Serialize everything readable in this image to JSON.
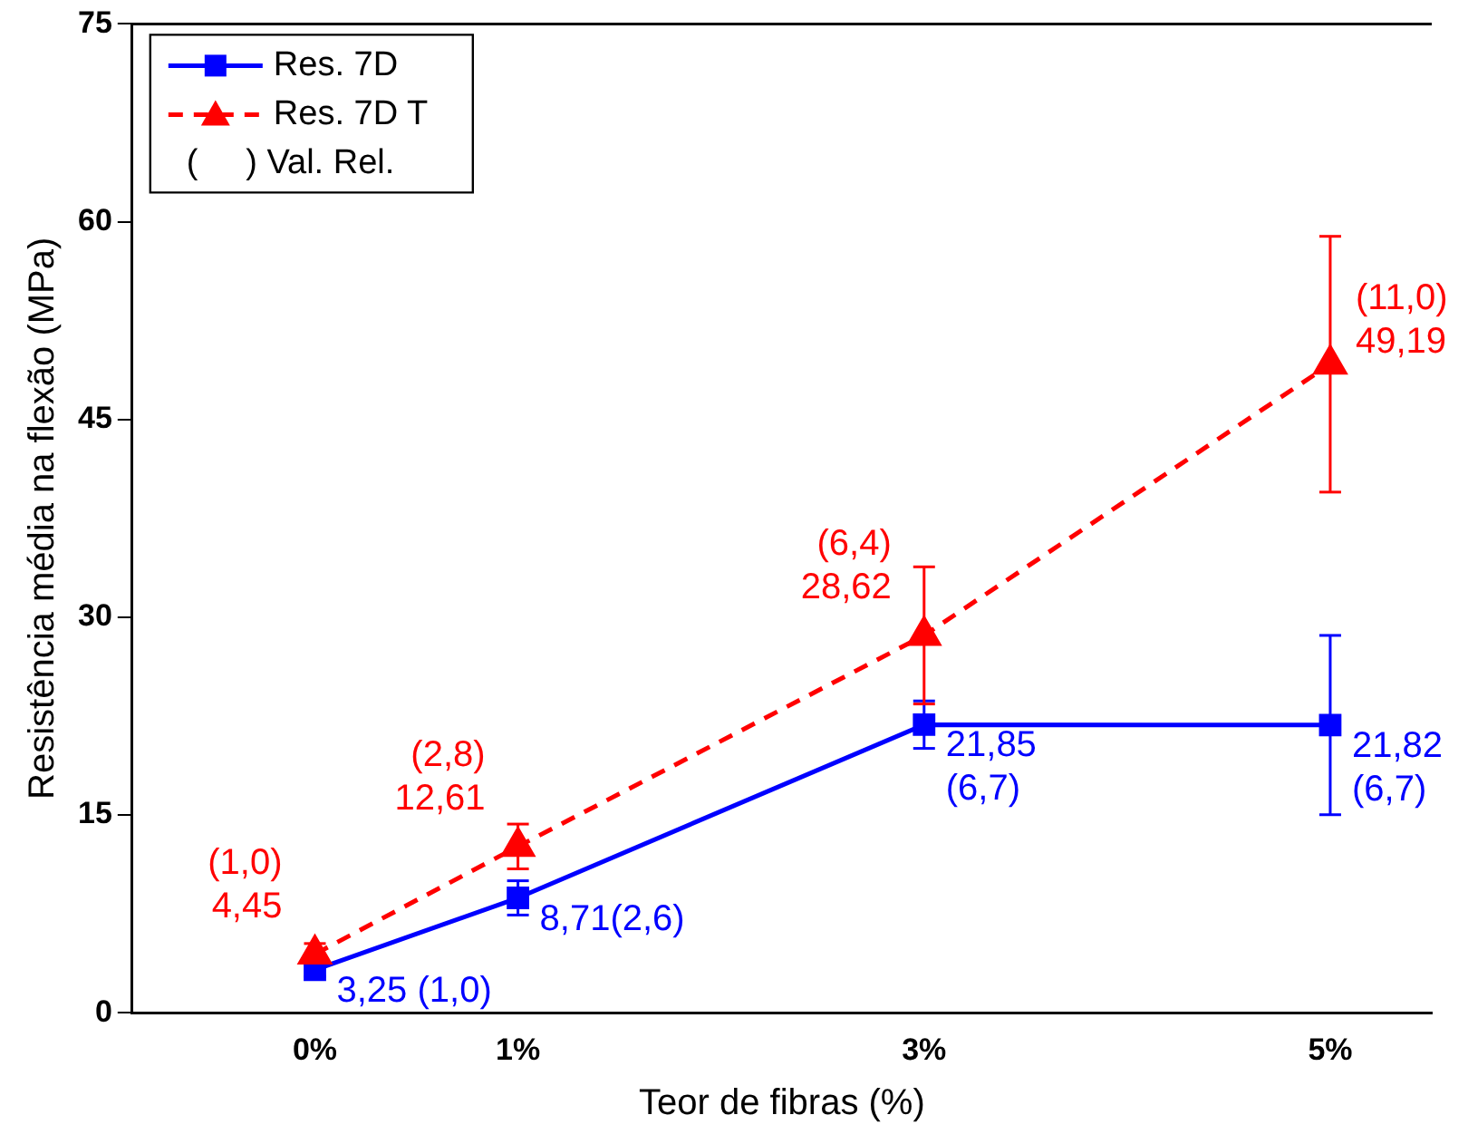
{
  "chart_data": {
    "type": "line",
    "xlabel": "Teor de fibras (%)",
    "ylabel": "Resistência média na flexão (MPa)",
    "x": [
      0,
      1,
      3,
      5
    ],
    "xlim": [
      -0.9,
      5.5
    ],
    "xticks": [
      {
        "value": 0,
        "label": "0%"
      },
      {
        "value": 1,
        "label": "1%"
      },
      {
        "value": 3,
        "label": "3%"
      },
      {
        "value": 5,
        "label": "5%"
      }
    ],
    "ylim": [
      0,
      75
    ],
    "yticks": [
      0,
      15,
      30,
      45,
      60,
      75
    ],
    "grid": false,
    "legend": "top left",
    "annotations": [
      "(     ) Val. Rel."
    ],
    "series": [
      {
        "name": "Res. 7D",
        "color": "#0000ff",
        "marker": "square",
        "line_style": "solid",
        "values": [
          3.25,
          8.71,
          21.85,
          21.82
        ],
        "errors": [
          0.5,
          1.3,
          1.8,
          6.8
        ],
        "value_labels": [
          "3,25 (1,0)",
          "8,71(2,6)",
          "21,85\n(6,7)",
          "21,82\n(6,7)"
        ]
      },
      {
        "name": "Res. 7D T",
        "color": "#ff0000",
        "marker": "triangle",
        "line_style": "dashed",
        "values": [
          4.45,
          12.61,
          28.62,
          49.19
        ],
        "errors": [
          0.8,
          1.7,
          5.2,
          9.7
        ],
        "value_labels": [
          "(1,0)\n4,45",
          "(2,8)\n12,61",
          "(6,4)\n28,62",
          "(11,0)\n49,19"
        ]
      }
    ]
  }
}
